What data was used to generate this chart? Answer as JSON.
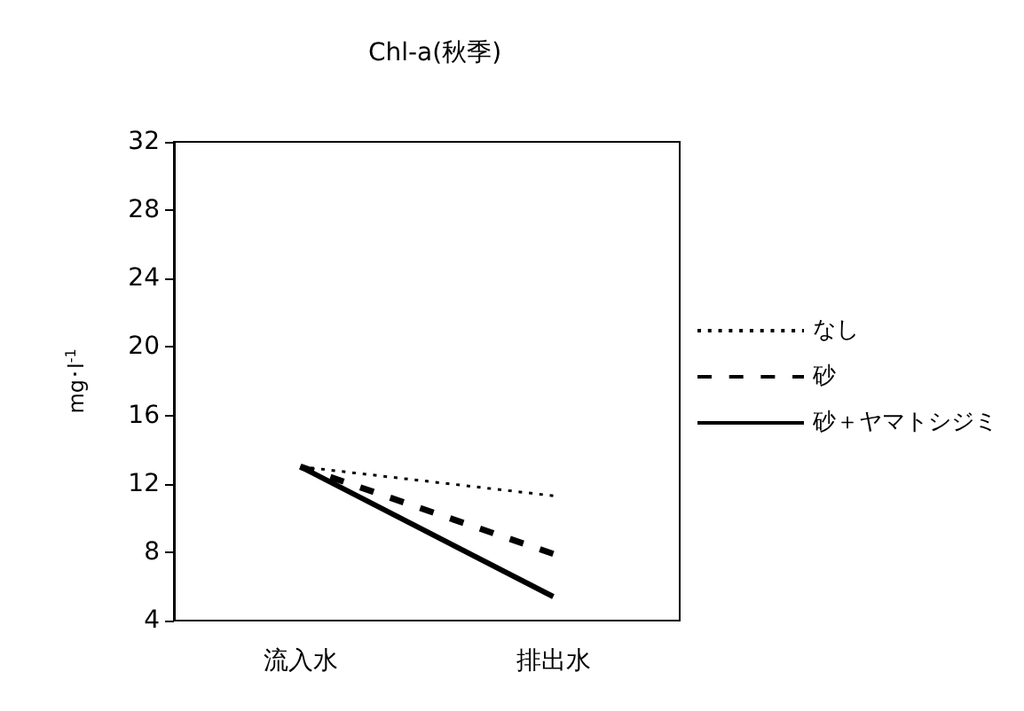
{
  "chart_data": {
    "type": "line",
    "title": "Chl-a(秋季)",
    "ylabel": "mg･l$^{-1}$",
    "categories": [
      "流入水",
      "排出水"
    ],
    "series": [
      {
        "name": "なし",
        "color": "#000000",
        "line_style": "dotted",
        "values": [
          13,
          11.3
        ]
      },
      {
        "name": "砂",
        "color": "#000000",
        "line_style": "dashed",
        "values": [
          13,
          7.9
        ]
      },
      {
        "name": "砂＋ヤマトシジミ",
        "color": "#000000",
        "line_style": "solid",
        "values": [
          13,
          5.4
        ]
      }
    ],
    "ylim": [
      4,
      32
    ],
    "yticks": [
      4,
      8,
      12,
      16,
      20,
      24,
      28,
      32
    ],
    "grid": false,
    "legend": "right",
    "marker": "none"
  }
}
